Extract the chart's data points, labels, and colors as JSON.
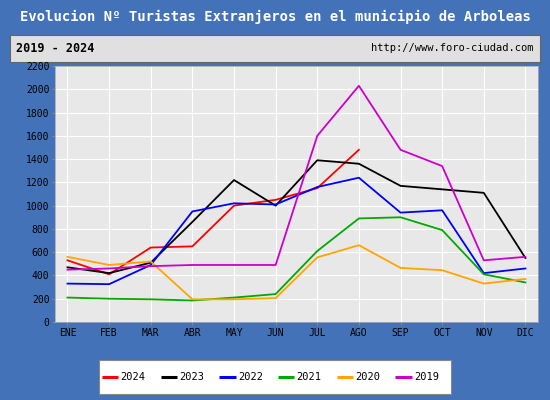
{
  "title": "Evolucion Nº Turistas Extranjeros en el municipio de Arboleas",
  "subtitle_left": "2019 - 2024",
  "subtitle_right": "http://www.foro-ciudad.com",
  "months": [
    "ENE",
    "FEB",
    "MAR",
    "ABR",
    "MAY",
    "JUN",
    "JUL",
    "AGO",
    "SEP",
    "OCT",
    "NOV",
    "DIC"
  ],
  "ylim": [
    0,
    2200
  ],
  "yticks": [
    0,
    200,
    400,
    600,
    800,
    1000,
    1200,
    1400,
    1600,
    1800,
    2000,
    2200
  ],
  "series": {
    "2024": {
      "color": "#ff0000",
      "data": [
        530,
        410,
        640,
        650,
        1000,
        1050,
        1150,
        1480,
        null,
        null,
        null,
        null
      ]
    },
    "2023": {
      "color": "#000000",
      "data": [
        470,
        420,
        510,
        860,
        1220,
        1000,
        1390,
        1360,
        1170,
        1140,
        1110,
        550
      ]
    },
    "2022": {
      "color": "#0000ff",
      "data": [
        330,
        325,
        490,
        950,
        1020,
        1010,
        1160,
        1240,
        940,
        960,
        420,
        460
      ]
    },
    "2021": {
      "color": "#00aa00",
      "data": [
        210,
        200,
        195,
        185,
        210,
        240,
        610,
        890,
        900,
        790,
        410,
        340
      ]
    },
    "2020": {
      "color": "#ffa500",
      "data": [
        560,
        490,
        520,
        195,
        195,
        205,
        555,
        660,
        465,
        445,
        330,
        370
      ]
    },
    "2019": {
      "color": "#cc00cc",
      "data": [
        450,
        460,
        480,
        490,
        490,
        490,
        1600,
        2030,
        1480,
        1340,
        530,
        560
      ]
    }
  },
  "legend_order": [
    "2024",
    "2023",
    "2022",
    "2021",
    "2020",
    "2019"
  ],
  "title_bg_color": "#4472b8",
  "title_text_color": "#ffffff",
  "subtitle_bg_color": "#e0e0e0",
  "plot_bg_color": "#e8e8e8",
  "grid_color": "#ffffff",
  "outer_bg_color": "#4472b8",
  "tick_fontsize": 7,
  "title_fontsize": 10
}
